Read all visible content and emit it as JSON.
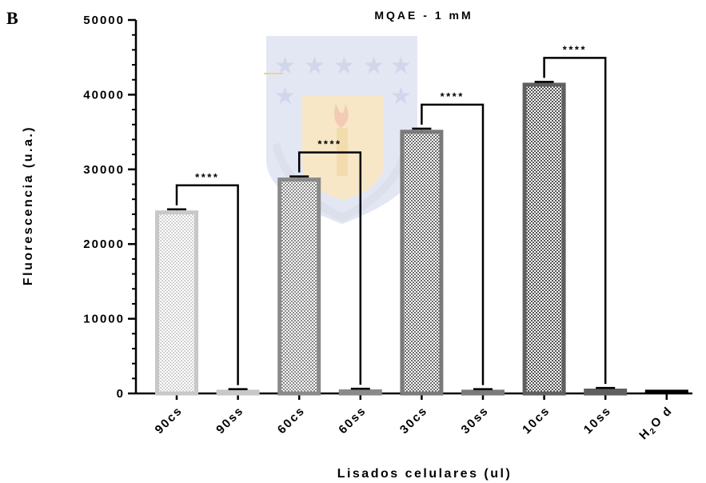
{
  "panel_label": "B",
  "colors": {
    "light_gray": "#c8c8c8",
    "medium_gray": "#8a8a8a",
    "dark_gray": "#6a6a6a",
    "darkest_gray": "#5a5a5a",
    "black": "#000000",
    "watermark_blue": "#3b52a3",
    "watermark_gold": "#e0a63a"
  },
  "watermark": {
    "description": "University of Concepción emblem watermark",
    "icon": "university-crest-icon"
  },
  "chart_data": {
    "type": "bar",
    "title": "MQAE - 1 mM",
    "xlabel": "Lisados celulares (ul)",
    "ylabel": "Fluorescencia (u.a.)",
    "ylim": [
      0,
      50000
    ],
    "yticks": [
      0,
      10000,
      20000,
      30000,
      40000,
      50000
    ],
    "ytick_labels": [
      "0",
      "10000",
      "20000",
      "30000",
      "40000",
      "50000"
    ],
    "grid": false,
    "categories": [
      "90cs",
      "90ss",
      "60cs",
      "60ss",
      "30cs",
      "30ss",
      "10cs",
      "10ss",
      "H2O d"
    ],
    "category_labels": [
      {
        "main": "90cs"
      },
      {
        "main": "90ss"
      },
      {
        "main": "60cs"
      },
      {
        "main": "60ss"
      },
      {
        "main": "30cs"
      },
      {
        "main": "30ss"
      },
      {
        "main": "10cs"
      },
      {
        "main": "10ss"
      },
      {
        "parts": [
          "H",
          "2",
          "O d"
        ]
      }
    ],
    "values": [
      24500,
      500,
      28900,
      550,
      35300,
      500,
      41600,
      650,
      500
    ],
    "errors": [
      150,
      80,
      150,
      80,
      150,
      80,
      120,
      80,
      0
    ],
    "bar_colors": [
      "#c8c8c8",
      "#c8c8c8",
      "#8a8a8a",
      "#8a8a8a",
      "#7a7a7a",
      "#7a7a7a",
      "#5f5f5f",
      "#5f5f5f",
      "#000000"
    ],
    "patterned": [
      true,
      true,
      true,
      true,
      true,
      true,
      true,
      true,
      false
    ],
    "significance": [
      {
        "from": 0,
        "to": 1,
        "label": "****"
      },
      {
        "from": 2,
        "to": 3,
        "label": "****"
      },
      {
        "from": 4,
        "to": 5,
        "label": "****"
      },
      {
        "from": 6,
        "to": 7,
        "label": "****"
      }
    ]
  }
}
